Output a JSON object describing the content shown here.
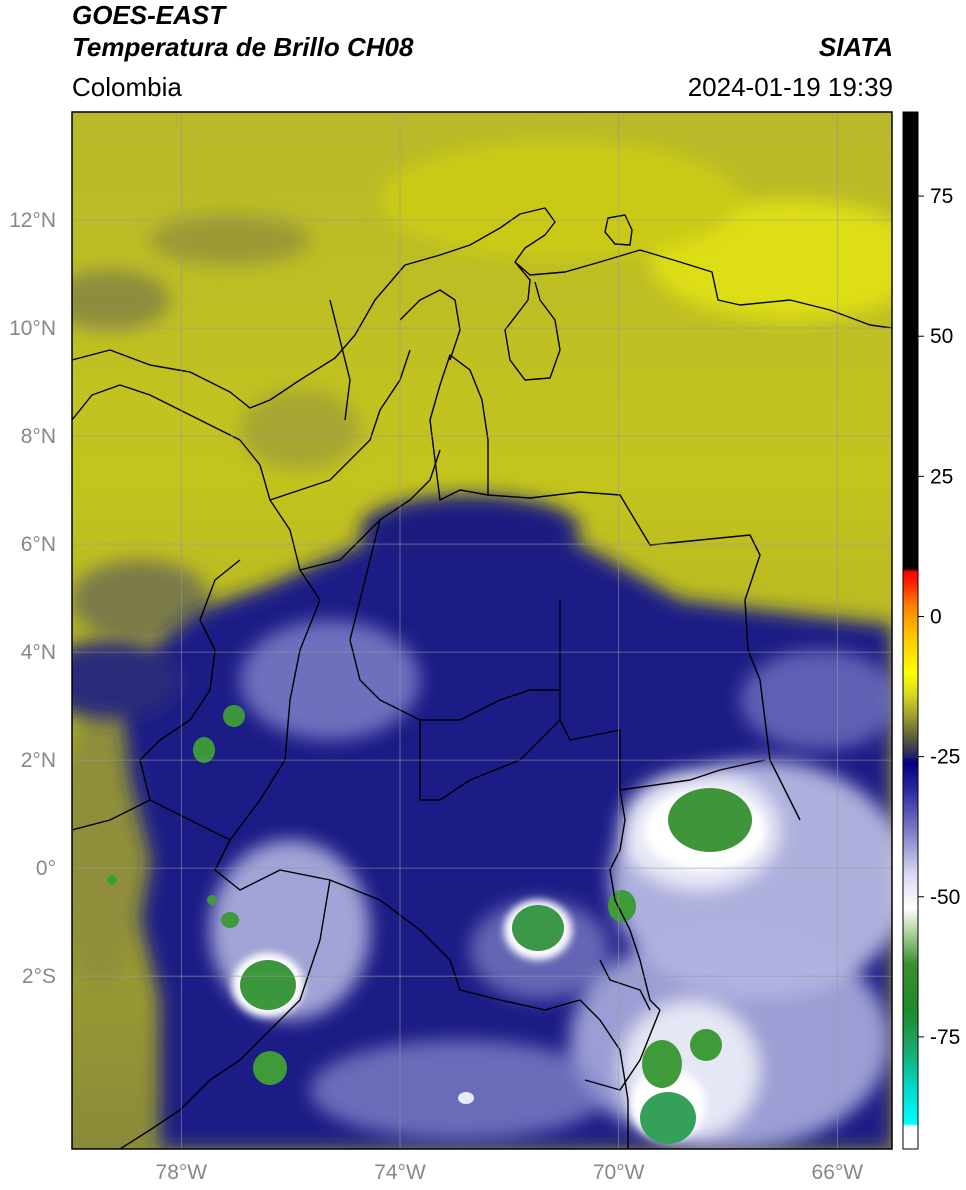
{
  "header": {
    "satellite": "GOES-EAST",
    "product": "Temperatura de Brillo CH08",
    "agency": "SIATA",
    "region": "Colombia",
    "datetime": "2024-01-19 19:39"
  },
  "map": {
    "lon_range": [
      -80,
      -65
    ],
    "lat_range": [
      -5.2,
      14
    ],
    "lat_ticks": [
      {
        "value": 12,
        "label": "12°N"
      },
      {
        "value": 10,
        "label": "10°N"
      },
      {
        "value": 8,
        "label": "8°N"
      },
      {
        "value": 6,
        "label": "6°N"
      },
      {
        "value": 4,
        "label": "4°N"
      },
      {
        "value": 2,
        "label": "2°N"
      },
      {
        "value": 0,
        "label": "0°"
      },
      {
        "value": -2,
        "label": "2°S"
      }
    ],
    "lon_ticks": [
      {
        "value": -78,
        "label": "78°W"
      },
      {
        "value": -74,
        "label": "74°W"
      },
      {
        "value": -70,
        "label": "70°W"
      },
      {
        "value": -66,
        "label": "66°W"
      }
    ],
    "grid": true,
    "colors": {
      "warm_yellow": "#c8c81e",
      "deep_blue": "#20228a",
      "cloud_white": "#eef0f6",
      "cold_green": "#3a9a46",
      "coast_line": "#000000"
    }
  },
  "colorbar": {
    "range": [
      -95,
      90
    ],
    "ticks": [
      {
        "value": 75,
        "label": "75"
      },
      {
        "value": 50,
        "label": "50"
      },
      {
        "value": 25,
        "label": "25"
      },
      {
        "value": 0,
        "label": "0"
      },
      {
        "value": -25,
        "label": "-25"
      },
      {
        "value": -50,
        "label": "-50"
      },
      {
        "value": -75,
        "label": "-75"
      }
    ],
    "stops": [
      {
        "value": -95,
        "color": "#ffffff"
      },
      {
        "value": -91,
        "color": "#ffffff"
      },
      {
        "value": -90.5,
        "color": "#00ffff"
      },
      {
        "value": -84,
        "color": "#00d8c8"
      },
      {
        "value": -77,
        "color": "#1aa86a"
      },
      {
        "value": -70,
        "color": "#1e8a2c"
      },
      {
        "value": -62,
        "color": "#3b8f2e"
      },
      {
        "value": -56,
        "color": "#b6d7a8"
      },
      {
        "value": -52,
        "color": "#ffffff"
      },
      {
        "value": -46,
        "color": "#d9d9f3"
      },
      {
        "value": -38,
        "color": "#7a7ac6"
      },
      {
        "value": -31,
        "color": "#2a2aa3"
      },
      {
        "value": -26,
        "color": "#000080"
      },
      {
        "value": -25,
        "color": "#222266"
      },
      {
        "value": -22,
        "color": "#555540"
      },
      {
        "value": -18,
        "color": "#9a9a2e"
      },
      {
        "value": -14,
        "color": "#d8d820"
      },
      {
        "value": -10,
        "color": "#ffff00"
      },
      {
        "value": -3,
        "color": "#ffc000"
      },
      {
        "value": 2,
        "color": "#ff8000"
      },
      {
        "value": 6,
        "color": "#ff2000"
      },
      {
        "value": 8,
        "color": "#ff0000"
      },
      {
        "value": 8.5,
        "color": "#000000"
      },
      {
        "value": 90,
        "color": "#000000"
      }
    ]
  }
}
